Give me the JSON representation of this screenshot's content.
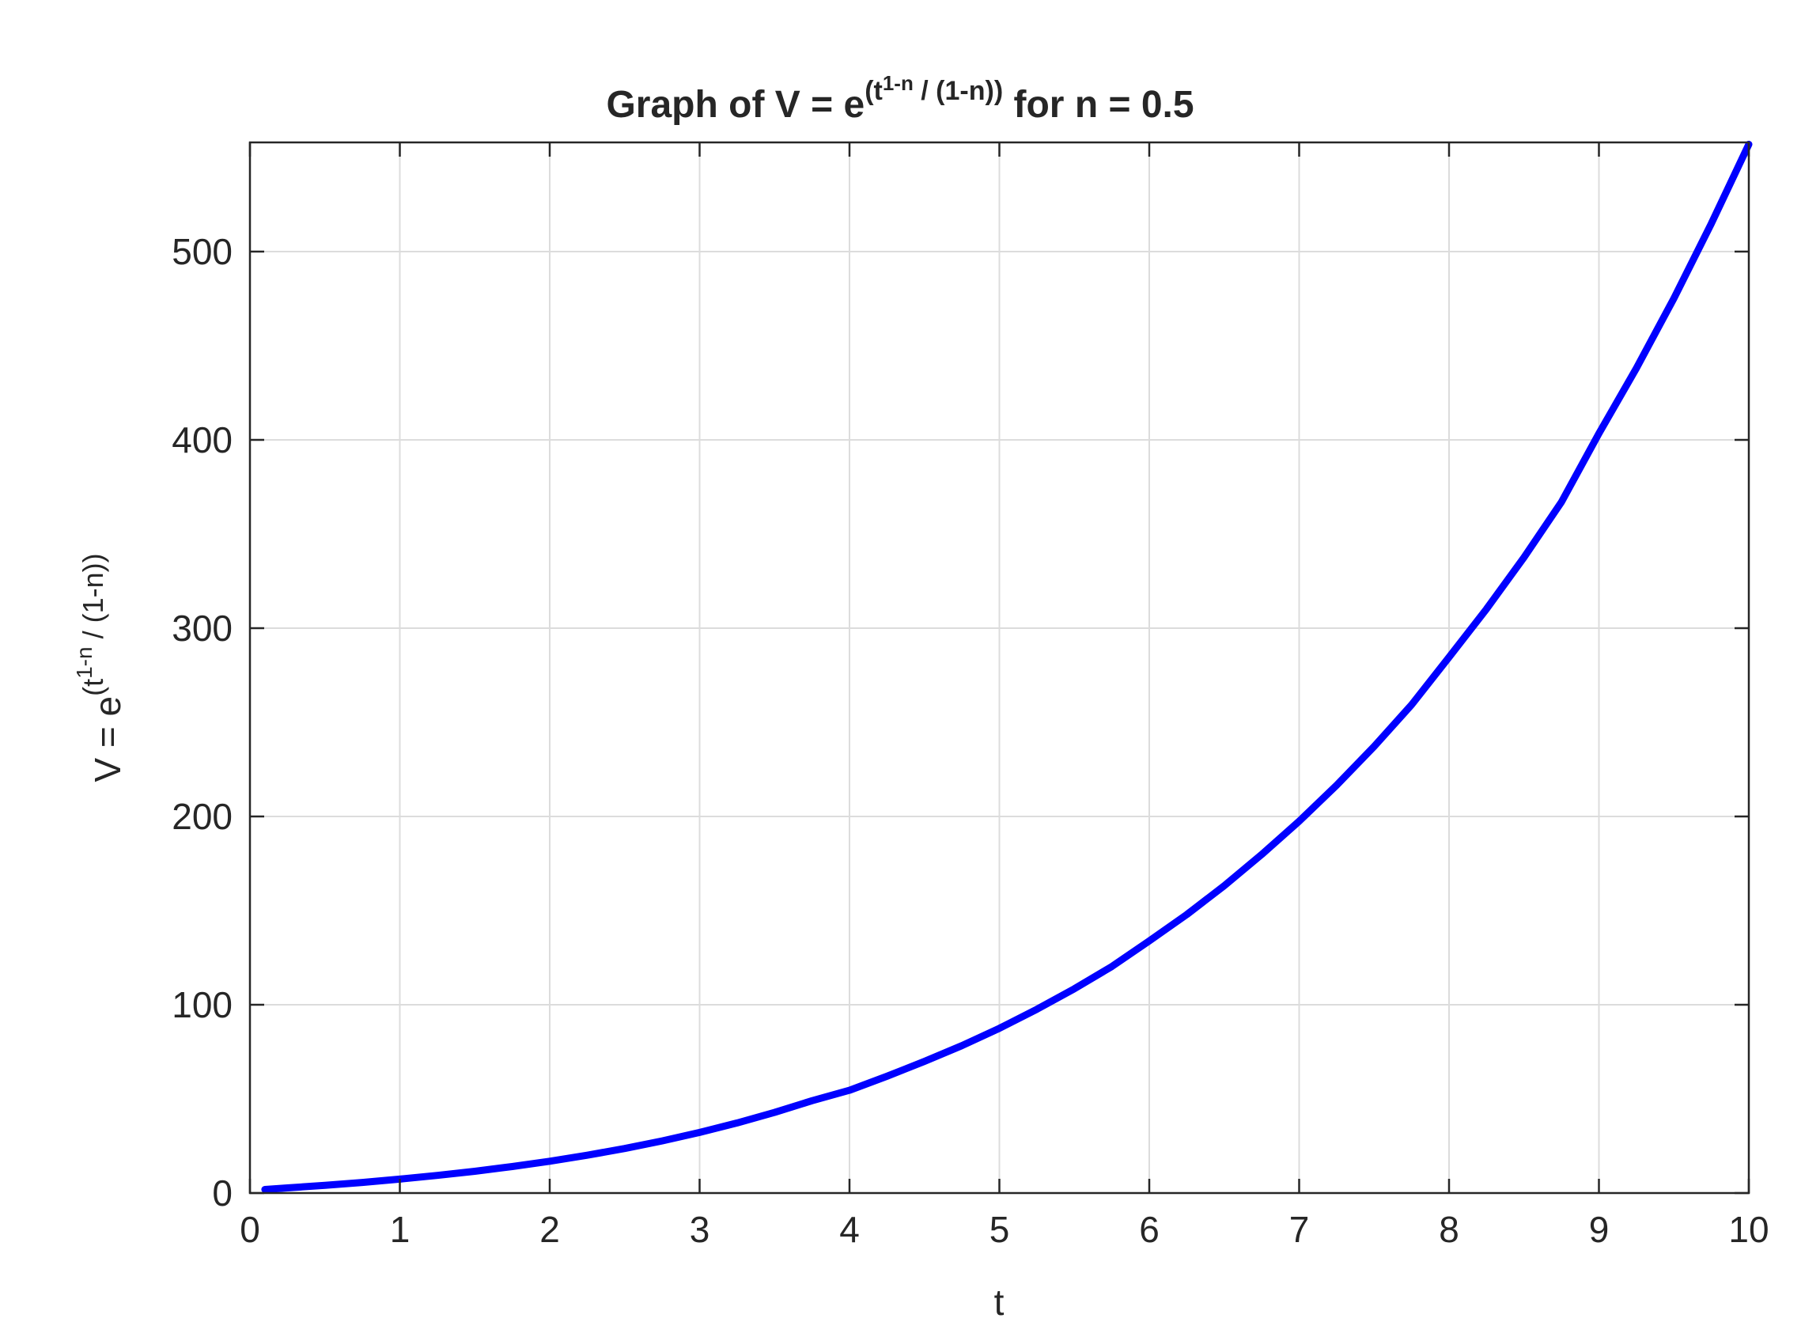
{
  "chart_data": {
    "type": "line",
    "title": {
      "prefix": "Graph of V = e",
      "sup_open": "(t",
      "sup_exp": "1-n",
      "sup_close": " / (1-n))",
      "suffix": " for n = 0.5"
    },
    "xlabel": "t",
    "ylabel": {
      "base": "V = e",
      "sup_open": "(t",
      "sup_exp": "1-n",
      "sup_close": " / (1-n))"
    },
    "xlim": [
      0,
      10
    ],
    "ylim": [
      0,
      558
    ],
    "xticks": [
      0,
      1,
      2,
      3,
      4,
      5,
      6,
      7,
      8,
      9,
      10
    ],
    "yticks": [
      0,
      100,
      200,
      300,
      400,
      500
    ],
    "grid": true,
    "series": [
      {
        "color": "#0000ff",
        "x": [
          0.1,
          0.25,
          0.5,
          0.75,
          1,
          1.25,
          1.5,
          1.75,
          2,
          2.25,
          2.5,
          2.75,
          3,
          3.25,
          3.5,
          3.75,
          4,
          4.25,
          4.5,
          4.75,
          5,
          5.25,
          5.5,
          5.75,
          6,
          6.25,
          6.5,
          6.75,
          7,
          7.25,
          7.5,
          7.75,
          8,
          8.25,
          8.5,
          8.75,
          9,
          9.25,
          9.5,
          9.75,
          10
        ],
        "y": [
          1.88,
          2.72,
          4.11,
          5.65,
          7.39,
          9.35,
          11.57,
          14.07,
          16.91,
          20.09,
          23.67,
          27.69,
          32.2,
          37.22,
          42.82,
          49.05,
          54.6,
          62.0,
          69.9,
          78.3,
          87.5,
          97.6,
          108.5,
          120.3,
          133.9,
          147.9,
          163.2,
          179.8,
          197.5,
          216.6,
          237.2,
          259.3,
          284.6,
          310.2,
          337.6,
          367.0,
          403.4,
          438.1,
          475.2,
          514.9,
          557.0
        ]
      }
    ]
  }
}
